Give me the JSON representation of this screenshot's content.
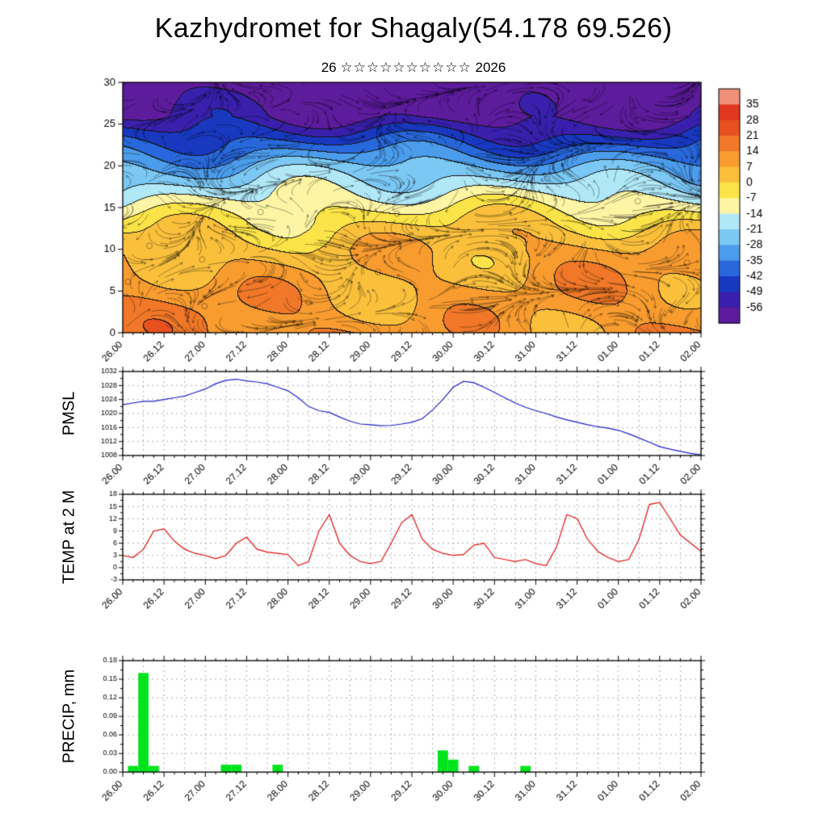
{
  "title": "Kazhydromet for Shagaly(54.178 69.526)",
  "subtitle": {
    "day": "26",
    "stars": "☆☆☆☆☆☆☆☆☆☆",
    "year": "2026"
  },
  "time_axis": {
    "labels": [
      "26.00",
      "26.12",
      "27.00",
      "27.12",
      "28.00",
      "28.12",
      "29.00",
      "29.12",
      "30.00",
      "30.12",
      "31.00",
      "31.12",
      "01.00",
      "01.12",
      "02.00"
    ],
    "hours_total": 168,
    "minor_tick_hours": 3,
    "label_every_hours": 12,
    "grid_every_hours": 6
  },
  "chart_data": [
    {
      "id": "temperature_height_cross_section",
      "type": "heatmap",
      "ylabel": "",
      "ylim": [
        0,
        30
      ],
      "yticks": [
        0,
        5,
        10,
        15,
        20,
        25,
        30
      ],
      "colorbar": {
        "ticks": [
          35,
          28,
          21,
          14,
          7,
          0,
          -7,
          -14,
          -21,
          -28,
          -35,
          -42,
          -49,
          -56
        ],
        "colors": [
          "#F09078",
          "#E03820",
          "#E85020",
          "#F07828",
          "#F89C30",
          "#FAC03C",
          "#FCE448",
          "#FDF5A4",
          "#B0E8F8",
          "#7CC8F4",
          "#4C9CEC",
          "#2868DC",
          "#1838C0",
          "#3820AC",
          "#5C1C9C"
        ]
      },
      "height_temp_profile": {
        "heights": [
          0,
          5,
          10,
          12,
          14,
          16,
          18,
          20,
          22,
          24,
          26,
          28,
          30
        ],
        "temps": [
          12,
          10,
          6,
          2,
          -4,
          -12,
          -20,
          -28,
          -38,
          -48,
          -58,
          -61,
          -63
        ]
      },
      "wind_overlay": {
        "style": "streamlines-with-arrowheads",
        "color": "#000000"
      }
    },
    {
      "id": "pmsl",
      "type": "line",
      "ylabel": "PMSL",
      "color": "#2020c8",
      "ylim": [
        1008,
        1032
      ],
      "yticks": [
        1008,
        1012,
        1016,
        1020,
        1024,
        1028,
        1032
      ],
      "x_step_hours": 3,
      "values": [
        1022.5,
        1023,
        1023.5,
        1023.5,
        1024,
        1024.5,
        1025,
        1026,
        1027,
        1028.5,
        1029.5,
        1029.8,
        1029.3,
        1029,
        1028.5,
        1027.5,
        1026.5,
        1024.5,
        1022,
        1020.8,
        1020.3,
        1019,
        1017.8,
        1017,
        1016.8,
        1016.5,
        1016.6,
        1017,
        1017.5,
        1018.5,
        1021,
        1024,
        1027.5,
        1029.2,
        1028.8,
        1027.5,
        1026,
        1024.5,
        1023,
        1021.8,
        1020.8,
        1020,
        1019,
        1018.2,
        1017.5,
        1016.8,
        1016.2,
        1015.8,
        1015.2,
        1014.2,
        1013,
        1011.8,
        1010.5,
        1009.8,
        1009.2,
        1008.6,
        1008.2
      ]
    },
    {
      "id": "temp_2m",
      "type": "line",
      "ylabel": "TEMP at 2 M",
      "color": "#e01010",
      "ylim": [
        -3,
        18
      ],
      "yticks": [
        -3,
        0,
        3,
        6,
        9,
        12,
        15,
        18
      ],
      "x_step_hours": 3,
      "values": [
        3,
        2.5,
        4.5,
        9,
        9.5,
        6.5,
        4.5,
        3.5,
        3,
        2.2,
        3,
        6,
        7.5,
        4.5,
        3.8,
        3.5,
        3.2,
        0.5,
        1.5,
        9,
        13,
        6,
        3,
        1.5,
        1,
        1.5,
        6,
        11,
        13,
        7,
        4.5,
        3.5,
        3,
        3.2,
        5.5,
        6,
        2.5,
        2,
        1.5,
        2,
        1,
        0.5,
        5,
        13,
        12,
        7,
        4,
        2.5,
        1.5,
        2,
        7,
        15.5,
        16,
        12,
        8,
        6,
        4
      ]
    },
    {
      "id": "precip",
      "type": "bar",
      "ylabel": "PRECIP, mm",
      "color": "#00e41c",
      "ylim": [
        0,
        0.18
      ],
      "yticks": [
        0,
        0.03,
        0.06,
        0.09,
        0.12,
        0.15,
        0.18
      ],
      "x_step_hours": 3,
      "bars": [
        [
          3,
          0.01
        ],
        [
          6,
          0.16
        ],
        [
          9,
          0.01
        ],
        [
          30,
          0.012
        ],
        [
          33,
          0.012
        ],
        [
          45,
          0.012
        ],
        [
          93,
          0.035
        ],
        [
          96,
          0.02
        ],
        [
          102,
          0.01
        ],
        [
          117,
          0.01
        ]
      ]
    }
  ]
}
